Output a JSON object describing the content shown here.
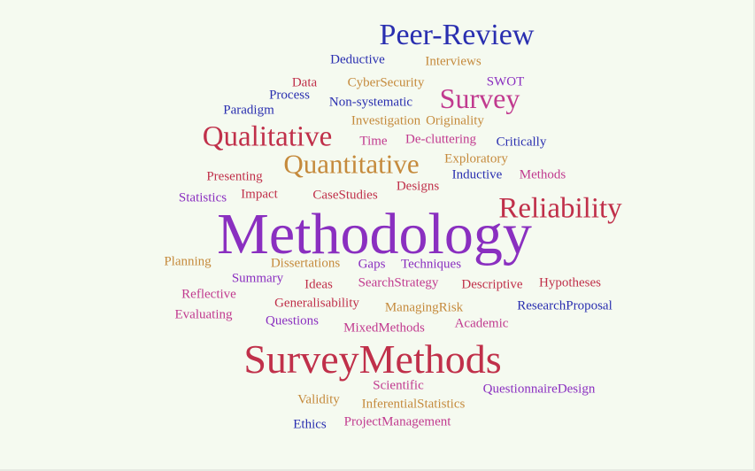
{
  "colors": {
    "background": "#f5faf0",
    "blue": "#2a2fb0",
    "purple": "#8a2fc0",
    "magenta": "#c13a8f",
    "red": "#c0304a",
    "orange": "#c58a3c"
  },
  "words": [
    {
      "text": "Peer-Review",
      "color": "#2a2fb0"
    },
    {
      "text": "Deductive",
      "color": "#2a2fb0"
    },
    {
      "text": "Interviews",
      "color": "#c58a3c"
    },
    {
      "text": "Data",
      "color": "#c0304a"
    },
    {
      "text": "CyberSecurity",
      "color": "#c58a3c"
    },
    {
      "text": "SWOT",
      "color": "#8a2fc0"
    },
    {
      "text": "Process",
      "color": "#2a2fb0"
    },
    {
      "text": "Survey",
      "color": "#c13a8f"
    },
    {
      "text": "Non-systematic",
      "color": "#2a2fb0"
    },
    {
      "text": "Paradigm",
      "color": "#2a2fb0"
    },
    {
      "text": "Investigation",
      "color": "#c58a3c"
    },
    {
      "text": "Originality",
      "color": "#c58a3c"
    },
    {
      "text": "Qualitative",
      "color": "#c0304a"
    },
    {
      "text": "Time",
      "color": "#c13a8f"
    },
    {
      "text": "De-cluttering",
      "color": "#c13a8f"
    },
    {
      "text": "Critically",
      "color": "#2a2fb0"
    },
    {
      "text": "Quantitative",
      "color": "#c58a3c"
    },
    {
      "text": "Exploratory",
      "color": "#c58a3c"
    },
    {
      "text": "Presenting",
      "color": "#c0304a"
    },
    {
      "text": "Inductive",
      "color": "#2a2fb0"
    },
    {
      "text": "Methods",
      "color": "#c13a8f"
    },
    {
      "text": "Designs",
      "color": "#c0304a"
    },
    {
      "text": "Statistics",
      "color": "#8a2fc0"
    },
    {
      "text": "Impact",
      "color": "#c0304a"
    },
    {
      "text": "CaseStudies",
      "color": "#c0304a"
    },
    {
      "text": "Reliability",
      "color": "#c0304a"
    },
    {
      "text": "Methodology",
      "color": "#8a2fc0"
    },
    {
      "text": "Planning",
      "color": "#c58a3c"
    },
    {
      "text": "Dissertations",
      "color": "#c58a3c"
    },
    {
      "text": "Gaps",
      "color": "#8a2fc0"
    },
    {
      "text": "Techniques",
      "color": "#8a2fc0"
    },
    {
      "text": "Summary",
      "color": "#8a2fc0"
    },
    {
      "text": "Ideas",
      "color": "#c0304a"
    },
    {
      "text": "SearchStrategy",
      "color": "#c13a8f"
    },
    {
      "text": "Descriptive",
      "color": "#c0304a"
    },
    {
      "text": "Hypotheses",
      "color": "#c0304a"
    },
    {
      "text": "Reflective",
      "color": "#c13a8f"
    },
    {
      "text": "Generalisability",
      "color": "#c0304a"
    },
    {
      "text": "ManagingRisk",
      "color": "#c58a3c"
    },
    {
      "text": "ResearchProposal",
      "color": "#2a2fb0"
    },
    {
      "text": "Evaluating",
      "color": "#c13a8f"
    },
    {
      "text": "Questions",
      "color": "#8a2fc0"
    },
    {
      "text": "MixedMethods",
      "color": "#c13a8f"
    },
    {
      "text": "Academic",
      "color": "#c13a8f"
    },
    {
      "text": "SurveyMethods",
      "color": "#c0304a"
    },
    {
      "text": "Scientific",
      "color": "#c13a8f"
    },
    {
      "text": "QuestionnaireDesign",
      "color": "#8a2fc0"
    },
    {
      "text": "Validity",
      "color": "#c58a3c"
    },
    {
      "text": "InferentialStatistics",
      "color": "#c58a3c"
    },
    {
      "text": "Ethics",
      "color": "#2a2fb0"
    },
    {
      "text": "ProjectManagement",
      "color": "#c13a8f"
    }
  ]
}
